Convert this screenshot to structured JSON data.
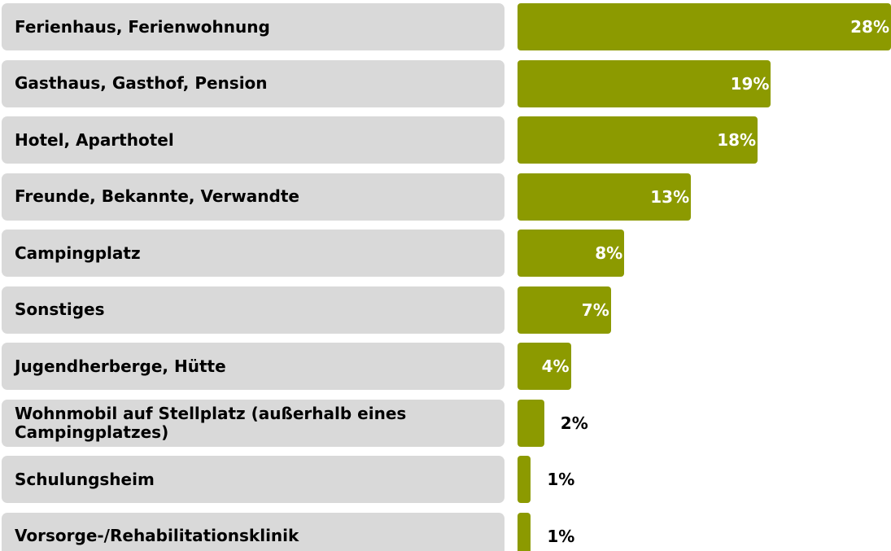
{
  "chart_data": {
    "type": "bar",
    "orientation": "horizontal",
    "categories": [
      "Ferienhaus, Ferienwohnung",
      "Gasthaus, Gasthof, Pension",
      "Hotel, Aparthotel",
      "Freunde, Bekannte, Verwandte",
      "Campingplatz",
      "Sonstiges",
      "Jugendherberge, Hütte",
      "Wohnmobil auf Stellplatz (außerhalb eines Campingplatzes)",
      "Schulungsheim",
      "Vorsorge-/Rehabilitationsklinik"
    ],
    "values": [
      28,
      19,
      18,
      13,
      8,
      7,
      4,
      2,
      1,
      1
    ],
    "value_labels": [
      "28%",
      "19%",
      "18%",
      "13%",
      "8%",
      "7%",
      "4%",
      "2%",
      "1%",
      "1%"
    ],
    "color": "#8c9a00",
    "xlim": [
      0,
      28
    ]
  }
}
